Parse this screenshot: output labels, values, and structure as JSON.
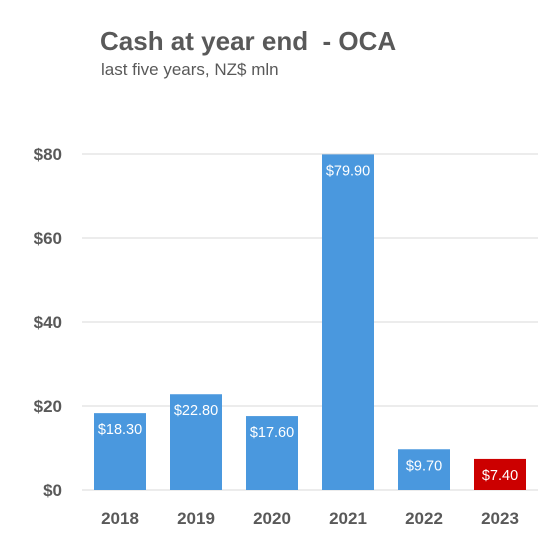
{
  "chart_data": {
    "type": "bar",
    "title": "Cash at year end  - OCA",
    "subtitle": "last five years, NZ$ mln",
    "categories": [
      "2018",
      "2019",
      "2020",
      "2021",
      "2022",
      "2023"
    ],
    "values": [
      18.3,
      22.8,
      17.6,
      79.9,
      9.7,
      7.4
    ],
    "data_labels": [
      "$18.30",
      "$22.80",
      "$17.60",
      "$79.90",
      "$9.70",
      "$7.40"
    ],
    "bar_colors": [
      "#4a98de",
      "#4a98de",
      "#4a98de",
      "#4a98de",
      "#4a98de",
      "#cc0000"
    ],
    "yticks": [
      0,
      20,
      40,
      60,
      80
    ],
    "ytick_labels": [
      "$0",
      "$20",
      "$40",
      "$60",
      "$80"
    ],
    "ylim": [
      0,
      80
    ],
    "grid": true,
    "legend": "none",
    "xlabel": "",
    "ylabel": ""
  },
  "colors": {
    "text": "#595959",
    "grid": "#d9d9d9",
    "bar": "#4a98de",
    "highlight": "#cc0000"
  }
}
